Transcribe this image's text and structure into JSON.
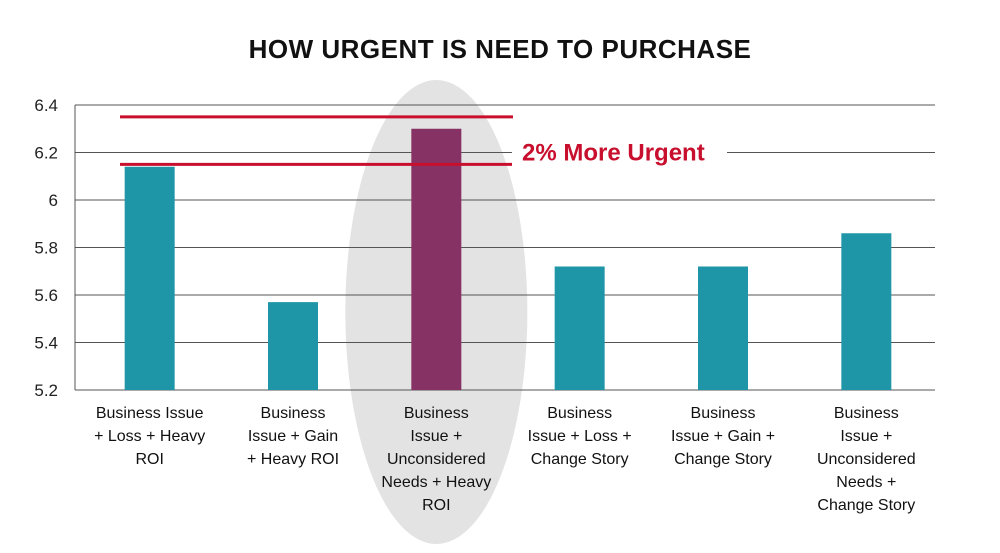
{
  "chart_data": {
    "type": "bar",
    "title": "HOW URGENT IS NEED TO PURCHASE",
    "categories": [
      [
        "Business Issue",
        "+ Loss + Heavy",
        "ROI"
      ],
      [
        "Business",
        "Issue + Gain",
        "+ Heavy ROI"
      ],
      [
        "Business",
        "Issue +",
        "Unconsidered",
        "Needs + Heavy",
        "ROI"
      ],
      [
        "Business",
        "Issue + Loss +",
        "Change Story"
      ],
      [
        "Business",
        "Issue + Gain +",
        "Change Story"
      ],
      [
        "Business",
        "Issue +",
        "Unconsidered",
        "Needs +",
        "Change Story"
      ]
    ],
    "values": [
      6.14,
      5.57,
      6.3,
      5.72,
      5.72,
      5.86
    ],
    "yticks": [
      "5.2",
      "5.4",
      "5.6",
      "5.8",
      "6",
      "6.2",
      "6.4"
    ],
    "ylim": [
      5.2,
      6.4
    ],
    "grid": true,
    "highlight_index": 2,
    "colors": {
      "bar": "#1f96a8",
      "highlight": "#873264",
      "annotation": "#c8102e",
      "grid": "#555555",
      "ellipse": "#e3e3e3"
    },
    "annotation": {
      "text": "2% More Urgent",
      "upper_value": 6.35,
      "lower_value": 6.15
    }
  }
}
